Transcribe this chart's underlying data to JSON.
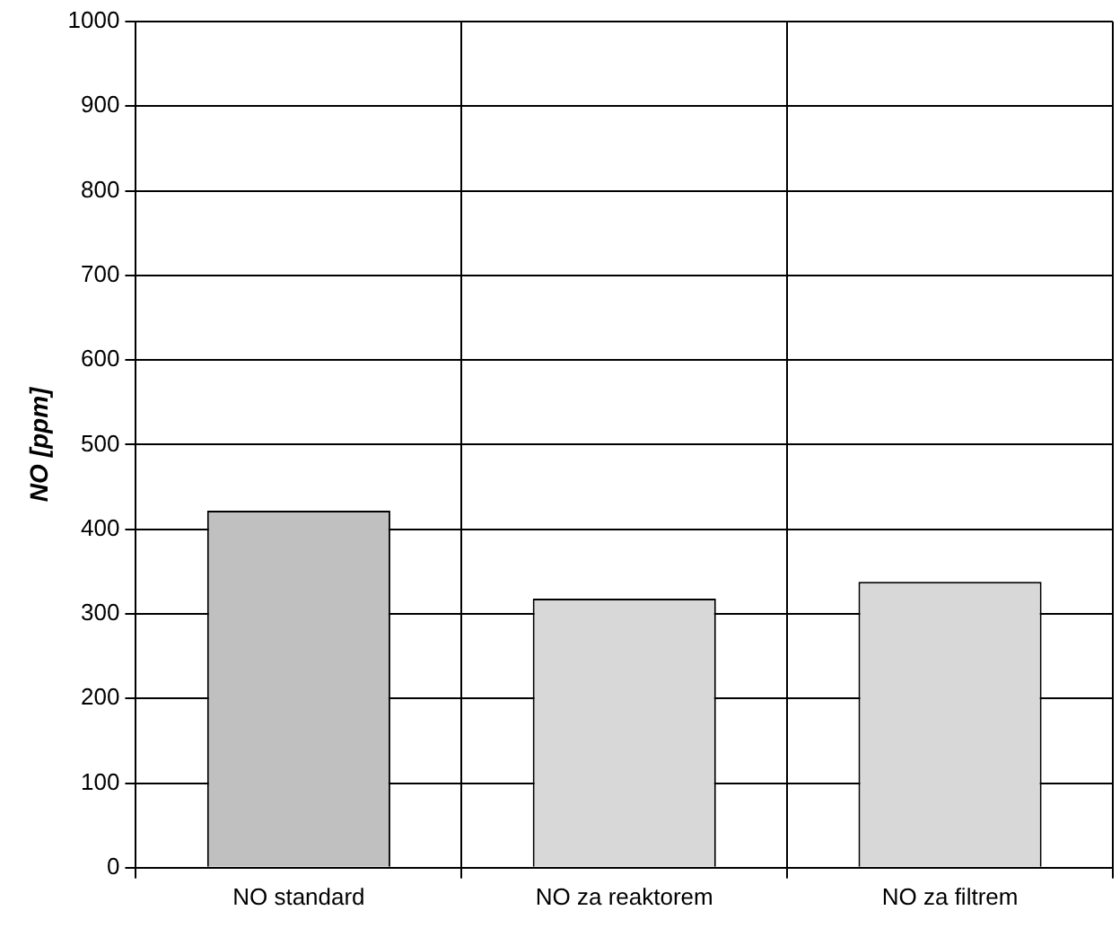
{
  "chart_data": {
    "type": "bar",
    "ylabel": "NO [ppm]",
    "categories": [
      "NO standard",
      "NO za reaktorem",
      "NO za filtrem"
    ],
    "values": [
      422,
      318,
      338
    ],
    "colors": [
      "#c0c0c0",
      "#d8d8d8",
      "#d8d8d8"
    ],
    "ylim": [
      0,
      1000
    ],
    "yticks": [
      0,
      100,
      200,
      300,
      400,
      500,
      600,
      700,
      800,
      900,
      1000
    ],
    "grid": true
  }
}
